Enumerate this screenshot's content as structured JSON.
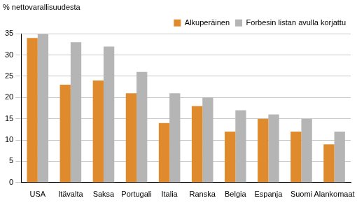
{
  "chart_data": {
    "type": "bar",
    "ylabel": "% nettovarallisuudesta",
    "categories": [
      "USA",
      "Itävalta",
      "Saksa",
      "Portugali",
      "Italia",
      "Ranska",
      "Belgia",
      "Espanja",
      "Suomi",
      "Alankomaat"
    ],
    "series": [
      {
        "name": "Alkuperäinen",
        "color": "#e08a2e",
        "values": [
          34,
          23,
          24,
          21,
          14,
          18,
          12,
          15,
          12,
          9
        ]
      },
      {
        "name": "Forbesin listan avulla korjattu",
        "color": "#b5b5b5",
        "values": [
          35,
          33,
          32,
          26,
          21,
          20,
          17,
          16,
          15,
          12
        ]
      }
    ],
    "ylim": [
      0,
      35
    ],
    "yticks": [
      0,
      5,
      10,
      15,
      20,
      25,
      30,
      35
    ],
    "grid": true,
    "legend": "upper right"
  }
}
